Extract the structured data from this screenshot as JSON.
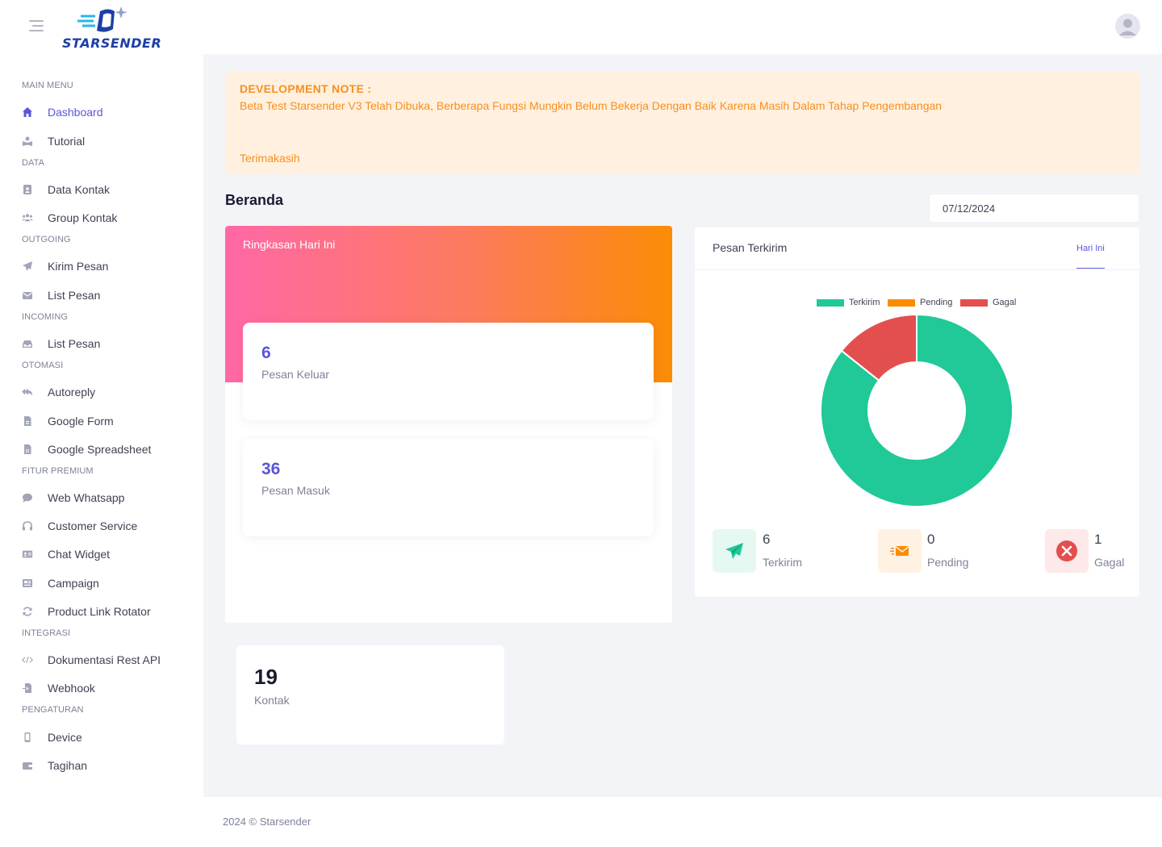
{
  "header": {
    "logo_text": "STARSENDER",
    "menu_icon": "hamburger-icon",
    "avatar_icon": "user-avatar-icon"
  },
  "sidebar": {
    "sections": [
      {
        "title": "MAIN MENU",
        "items": [
          {
            "label": "Dashboard",
            "icon": "home-icon",
            "active": true
          },
          {
            "label": "Tutorial",
            "icon": "tutorial-icon"
          }
        ]
      },
      {
        "title": "DATA",
        "items": [
          {
            "label": "Data Kontak",
            "icon": "contact-book-icon"
          },
          {
            "label": "Group Kontak",
            "icon": "users-group-icon"
          }
        ]
      },
      {
        "title": "OUTGOING",
        "items": [
          {
            "label": "Kirim Pesan",
            "icon": "paper-plane-icon"
          },
          {
            "label": "List Pesan",
            "icon": "envelope-icon"
          }
        ]
      },
      {
        "title": "INCOMING",
        "items": [
          {
            "label": "List Pesan",
            "icon": "inbox-icon"
          }
        ]
      },
      {
        "title": "OTOMASI",
        "items": [
          {
            "label": "Autoreply",
            "icon": "reply-all-icon"
          },
          {
            "label": "Google Form",
            "icon": "file-form-icon"
          },
          {
            "label": "Google Spreadsheet",
            "icon": "file-sheet-icon"
          }
        ]
      },
      {
        "title": "FITUR PREMIUM",
        "items": [
          {
            "label": "Web Whatsapp",
            "icon": "chat-bubble-icon"
          },
          {
            "label": "Customer Service",
            "icon": "headset-icon"
          },
          {
            "label": "Chat Widget",
            "icon": "id-card-icon"
          },
          {
            "label": "Campaign",
            "icon": "newspaper-icon"
          },
          {
            "label": "Product Link Rotator",
            "icon": "rotate-icon"
          }
        ]
      },
      {
        "title": "INTEGRASI",
        "items": [
          {
            "label": "Dokumentasi Rest API",
            "icon": "code-icon"
          },
          {
            "label": "Webhook",
            "icon": "file-import-icon"
          }
        ]
      },
      {
        "title": "PENGATURAN",
        "items": [
          {
            "label": "Device",
            "icon": "mobile-icon"
          },
          {
            "label": "Tagihan",
            "icon": "wallet-icon"
          }
        ]
      }
    ]
  },
  "note": {
    "title": "DEVELOPMENT NOTE :",
    "body": "Beta Test Starsender V3 Telah Dibuka, Berberapa Fungsi Mungkin Belum Bekerja Dengan Baik Karena Masih Dalam Tahap Pengembangan",
    "thanks": "Terimakasih"
  },
  "page": {
    "title": "Beranda",
    "date_value": "07/12/2024"
  },
  "summary": {
    "title": "Ringkasan Hari Ini",
    "cards": [
      {
        "value": "6",
        "label": "Pesan Keluar"
      },
      {
        "value": "36",
        "label": "Pesan Masuk"
      }
    ]
  },
  "chart": {
    "title": "Pesan Terkirim",
    "tab": "Hari Ini",
    "stats": [
      {
        "value": "6",
        "label": "Terkirim",
        "icon": "paper-plane-icon"
      },
      {
        "value": "0",
        "label": "Pending",
        "icon": "fast-envelope-icon"
      },
      {
        "value": "1",
        "label": "Gagal",
        "icon": "close-circle-icon"
      }
    ]
  },
  "chart_data": {
    "type": "pie",
    "categories": [
      "Terkirim",
      "Pending",
      "Gagal"
    ],
    "values": [
      6,
      0,
      1
    ],
    "colors": [
      "#20c997",
      "#fb8c00",
      "#e34f4f"
    ],
    "legend": "top"
  },
  "kontak": {
    "value": "19",
    "label": "Kontak"
  },
  "footer": {
    "text": "2024 © Starsender"
  },
  "colors": {
    "primary": "#5a55d9",
    "note_bg": "#fff0e0",
    "note_text": "#f7901e",
    "success": "#20c997",
    "warning": "#fb8c00",
    "danger": "#e34f4f"
  }
}
